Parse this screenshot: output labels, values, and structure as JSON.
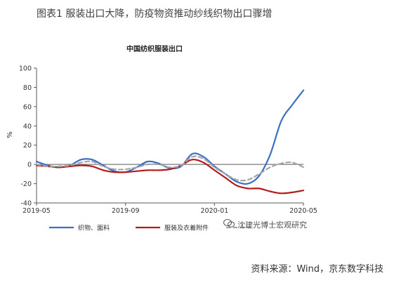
{
  "figure": {
    "title": "图表1 服装出口大降，防疫物资推动纱线织物出口骤增",
    "source": "资料来源：Wind，京东数字科技",
    "watermark": "沈建光博士宏观研究"
  },
  "colors": {
    "textile": "#3a6fc6",
    "apparel": "#b31c1c",
    "third": "#a6a6a6",
    "axis": "#595959",
    "text": "#333333"
  },
  "chart_data": {
    "type": "line",
    "title": "中国纺织服装出口",
    "ylabel": "%",
    "ylim": [
      -40,
      100
    ],
    "yticks": [
      -40,
      -20,
      0,
      20,
      40,
      60,
      80,
      100
    ],
    "xticks": [
      {
        "label": "2019-05",
        "t": 0
      },
      {
        "label": "2019-09",
        "t": 4
      },
      {
        "label": "2020-01",
        "t": 8
      },
      {
        "label": "2020-05",
        "t": 12
      }
    ],
    "xlim": [
      0,
      12
    ],
    "legend_position": "bottom",
    "series": [
      {
        "name": "织物、面料",
        "color": "#3a6fc6",
        "dash": false,
        "points": [
          [
            0,
            3
          ],
          [
            0.5,
            -1
          ],
          [
            1,
            -3
          ],
          [
            1.5,
            -1
          ],
          [
            2,
            5
          ],
          [
            2.5,
            5
          ],
          [
            3,
            -1
          ],
          [
            3.5,
            -7
          ],
          [
            4,
            -8
          ],
          [
            4.5,
            -3
          ],
          [
            5,
            3
          ],
          [
            5.5,
            1
          ],
          [
            6,
            -4
          ],
          [
            6.5,
            -2
          ],
          [
            7,
            11
          ],
          [
            7.5,
            8
          ],
          [
            8,
            -2
          ],
          [
            8.5,
            -10
          ],
          [
            9,
            -18
          ],
          [
            9.5,
            -20
          ],
          [
            10,
            -12
          ],
          [
            10.5,
            10
          ],
          [
            11,
            45
          ],
          [
            11.5,
            62
          ],
          [
            12,
            77
          ]
        ]
      },
      {
        "name": "服装及衣着附件",
        "color": "#b31c1c",
        "dash": false,
        "points": [
          [
            0,
            -1
          ],
          [
            0.5,
            -2
          ],
          [
            1,
            -3
          ],
          [
            1.5,
            -2
          ],
          [
            2,
            -1
          ],
          [
            2.5,
            -2
          ],
          [
            3,
            -6
          ],
          [
            3.5,
            -8
          ],
          [
            4,
            -8
          ],
          [
            4.5,
            -7
          ],
          [
            5,
            -6
          ],
          [
            5.5,
            -6
          ],
          [
            6,
            -5
          ],
          [
            6.5,
            -1
          ],
          [
            7,
            5
          ],
          [
            7.5,
            2
          ],
          [
            8,
            -6
          ],
          [
            8.5,
            -14
          ],
          [
            9,
            -22
          ],
          [
            9.5,
            -25
          ],
          [
            10,
            -25
          ],
          [
            10.5,
            -28
          ],
          [
            11,
            -30
          ],
          [
            11.5,
            -29
          ],
          [
            12,
            -27
          ]
        ]
      },
      {
        "name": "",
        "color": "#a6a6a6",
        "dash": true,
        "points": [
          [
            0,
            0
          ],
          [
            0.5,
            -2
          ],
          [
            1,
            -2
          ],
          [
            1.5,
            -1
          ],
          [
            2,
            2
          ],
          [
            2.5,
            3
          ],
          [
            3,
            -2
          ],
          [
            3.5,
            -5
          ],
          [
            4,
            -5
          ],
          [
            4.5,
            -3
          ],
          [
            5,
            0
          ],
          [
            5.5,
            0
          ],
          [
            6,
            -3
          ],
          [
            6.5,
            -1
          ],
          [
            7,
            8
          ],
          [
            7.5,
            6
          ],
          [
            8,
            -3
          ],
          [
            8.5,
            -10
          ],
          [
            9,
            -16
          ],
          [
            9.5,
            -16
          ],
          [
            10,
            -10
          ],
          [
            10.5,
            -3
          ],
          [
            11,
            1
          ],
          [
            11.5,
            2
          ],
          [
            12,
            -3
          ]
        ]
      }
    ]
  }
}
